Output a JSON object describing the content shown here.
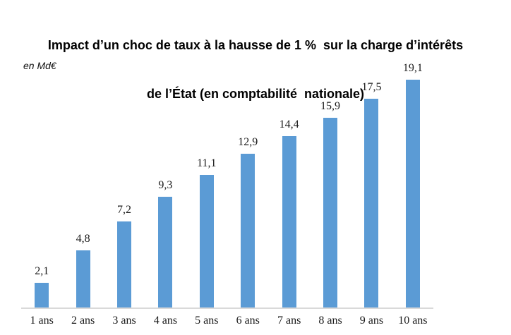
{
  "title": {
    "line1": "Impact d’un choc de taux à la hausse de 1 %  sur la charge d’intérêts",
    "line2": "de l’État (en comptabilité  nationale)"
  },
  "unit_label": "en Md€",
  "colors": {
    "bar": "#5B9BD5",
    "axis_line": "#D9D9D9",
    "label_text": "#1a1a1a",
    "title_text": "#000000"
  },
  "chart_data": {
    "type": "bar",
    "title": "Impact d’un choc de taux à la hausse de 1 % sur la charge d’intérêts de l’État (en comptabilité nationale)",
    "categories": [
      "1 ans",
      "2 ans",
      "3 ans",
      "4 ans",
      "5 ans",
      "6 ans",
      "7 ans",
      "8 ans",
      "9 ans",
      "10 ans"
    ],
    "values": [
      2.1,
      4.8,
      7.2,
      9.3,
      11.1,
      12.9,
      14.4,
      15.9,
      17.5,
      19.1
    ],
    "value_labels": [
      "2,1",
      "4,8",
      "7,2",
      "9,3",
      "11,1",
      "12,9",
      "14,4",
      "15,9",
      "17,5",
      "19,1"
    ],
    "xlabel": "",
    "ylabel": "en Md€",
    "ylim": [
      0,
      20
    ],
    "grid": false,
    "legend": false,
    "data_labels_position": "above-bars"
  }
}
